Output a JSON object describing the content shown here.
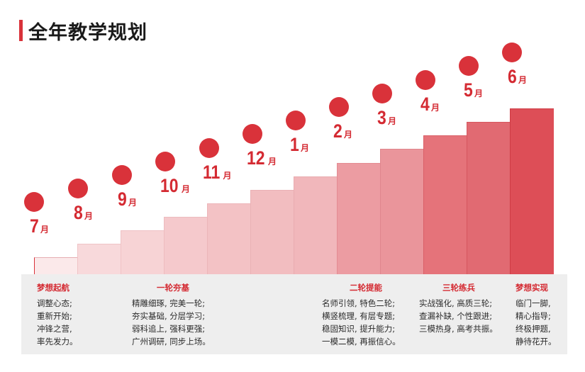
{
  "title": "全年教学规划",
  "colors": {
    "accent": "#d9323a",
    "text": "#2b2b2b"
  },
  "months": [
    {
      "num": "7",
      "unit": "月"
    },
    {
      "num": "8",
      "unit": "月"
    },
    {
      "num": "9",
      "unit": "月"
    },
    {
      "num": "10",
      "unit": "月"
    },
    {
      "num": "11",
      "unit": "月"
    },
    {
      "num": "12",
      "unit": "月"
    },
    {
      "num": "1",
      "unit": "月"
    },
    {
      "num": "2",
      "unit": "月"
    },
    {
      "num": "3",
      "unit": "月"
    },
    {
      "num": "4",
      "unit": "月"
    },
    {
      "num": "5",
      "unit": "月"
    },
    {
      "num": "6",
      "unit": "月"
    }
  ],
  "phases": [
    {
      "title": "梦想起航",
      "lines": [
        "调整心态;",
        "重新开始;",
        "冲锋之营,",
        "率先发力。"
      ]
    },
    {
      "title": "一轮夯基",
      "lines": [
        "精雕细琢, 完美一轮;",
        "夯实基础, 分层学习;",
        "弱科追上, 强科更强;",
        "广州调研, 同步上场。"
      ]
    },
    {
      "title": "二轮提能",
      "lines": [
        "名师引领, 特色二轮;",
        "横竖梳理, 有层专题;",
        "稳固知识, 提升能力;",
        "一模二模, 再振信心。"
      ]
    },
    {
      "title": "三轮练兵",
      "lines": [
        "实战强化, 高质三轮;",
        "查漏补缺, 个性跟进;",
        "三模热身, 高考共振。"
      ]
    },
    {
      "title": "梦想实现",
      "lines": [
        "临门一脚,",
        "精心指导;",
        "终极押题,",
        "静待花开。"
      ]
    }
  ]
}
